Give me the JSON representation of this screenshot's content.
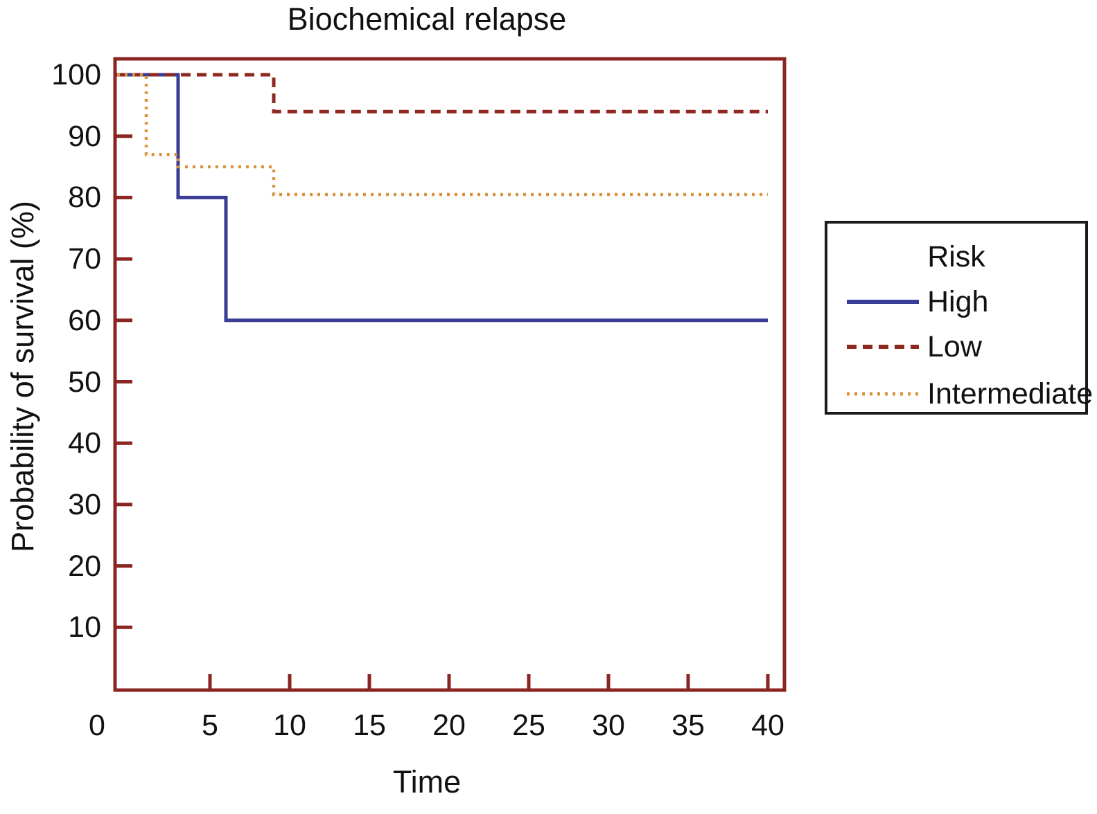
{
  "page": {
    "background": "#ffffff"
  },
  "chart_data": {
    "type": "line",
    "variant": "kaplan-meier-step",
    "title": "Biochemical relapse",
    "xlabel": "Time",
    "ylabel": "Probability of survival (%)",
    "xlim": [
      0,
      40
    ],
    "ylim": [
      0,
      100
    ],
    "grid": false,
    "x_ticks": [
      0,
      5,
      10,
      15,
      20,
      25,
      30,
      35,
      40
    ],
    "y_ticks": [
      100,
      90,
      80,
      70,
      60,
      50,
      40,
      30,
      20,
      10
    ],
    "frame_color": "#8a2522",
    "legend": {
      "title": "Risk",
      "position": "outside-right",
      "entries": [
        {
          "label": "High",
          "style": "solid",
          "color": "#3a3d96"
        },
        {
          "label": "Low",
          "style": "dashed",
          "color": "#8f2821"
        },
        {
          "label": "Intermediate",
          "style": "dotted",
          "color": "#d9923f"
        }
      ]
    },
    "series": [
      {
        "name": "High",
        "style": "solid",
        "color": "#3a3d96",
        "points": [
          [
            0,
            100
          ],
          [
            3,
            100
          ],
          [
            3,
            80
          ],
          [
            6,
            80
          ],
          [
            6,
            60
          ],
          [
            40,
            60
          ]
        ]
      },
      {
        "name": "Low",
        "style": "dashed",
        "color": "#8f2821",
        "points": [
          [
            0,
            100
          ],
          [
            9,
            100
          ],
          [
            9,
            94
          ],
          [
            40,
            94
          ]
        ]
      },
      {
        "name": "Intermediate",
        "style": "dotted",
        "color": "#d9923f",
        "points": [
          [
            0,
            100
          ],
          [
            1,
            100
          ],
          [
            1,
            87
          ],
          [
            3,
            87
          ],
          [
            3,
            85
          ],
          [
            9,
            85
          ],
          [
            9,
            80.5
          ],
          [
            40,
            80.5
          ]
        ]
      }
    ]
  }
}
